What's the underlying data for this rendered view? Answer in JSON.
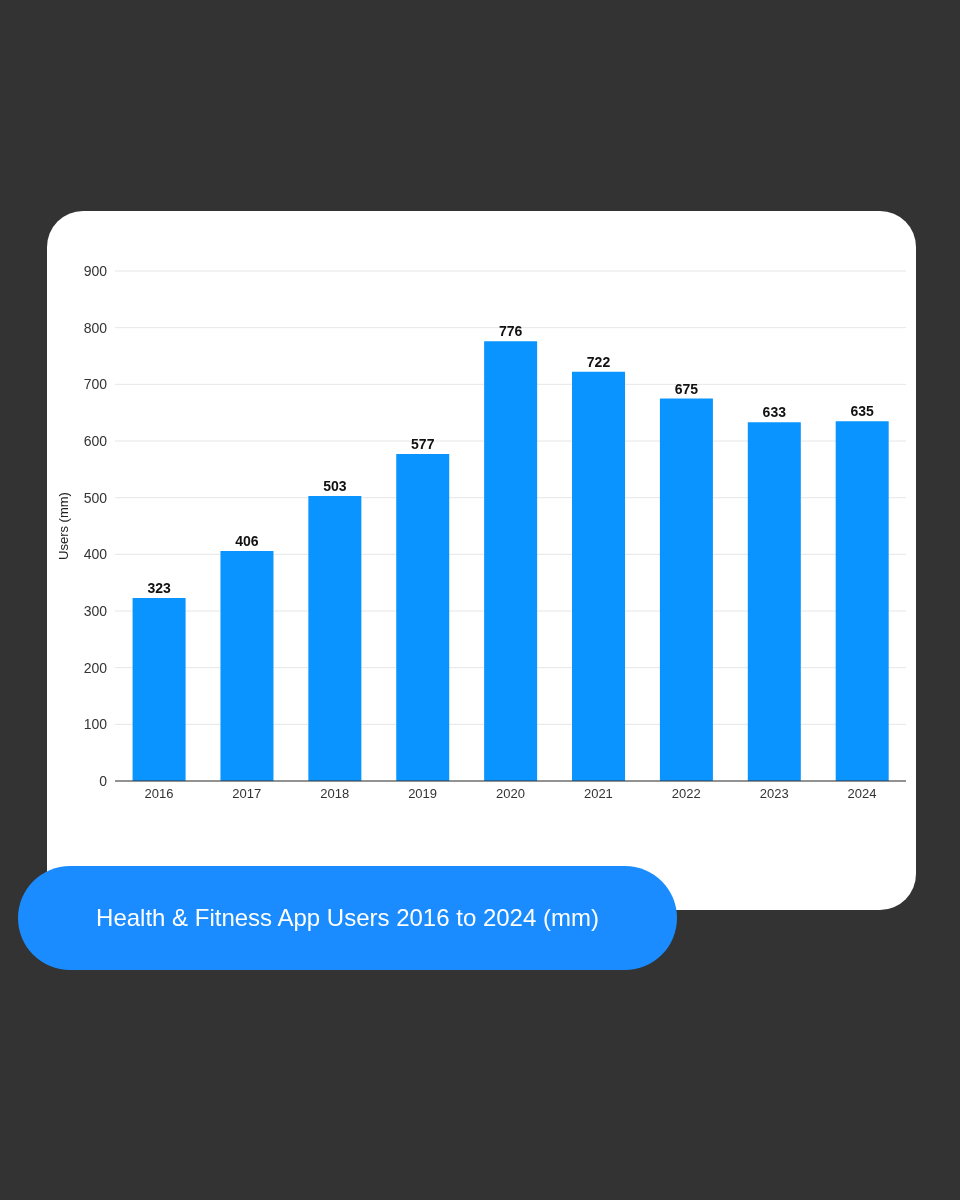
{
  "chart_data": {
    "type": "bar",
    "title": "Health & Fitness App Users 2016 to 2024 (mm)",
    "ylabel": "Users (mm)",
    "categories": [
      "2016",
      "2017",
      "2018",
      "2019",
      "2020",
      "2021",
      "2022",
      "2023",
      "2024"
    ],
    "values": [
      323,
      406,
      503,
      577,
      776,
      722,
      675,
      633,
      635
    ],
    "color": "#0a94ff",
    "ylim": [
      0,
      900
    ],
    "yticks": [
      0,
      100,
      200,
      300,
      400,
      500,
      600,
      700,
      800,
      900
    ],
    "grid": "y",
    "data_labels": true,
    "legend": false
  }
}
